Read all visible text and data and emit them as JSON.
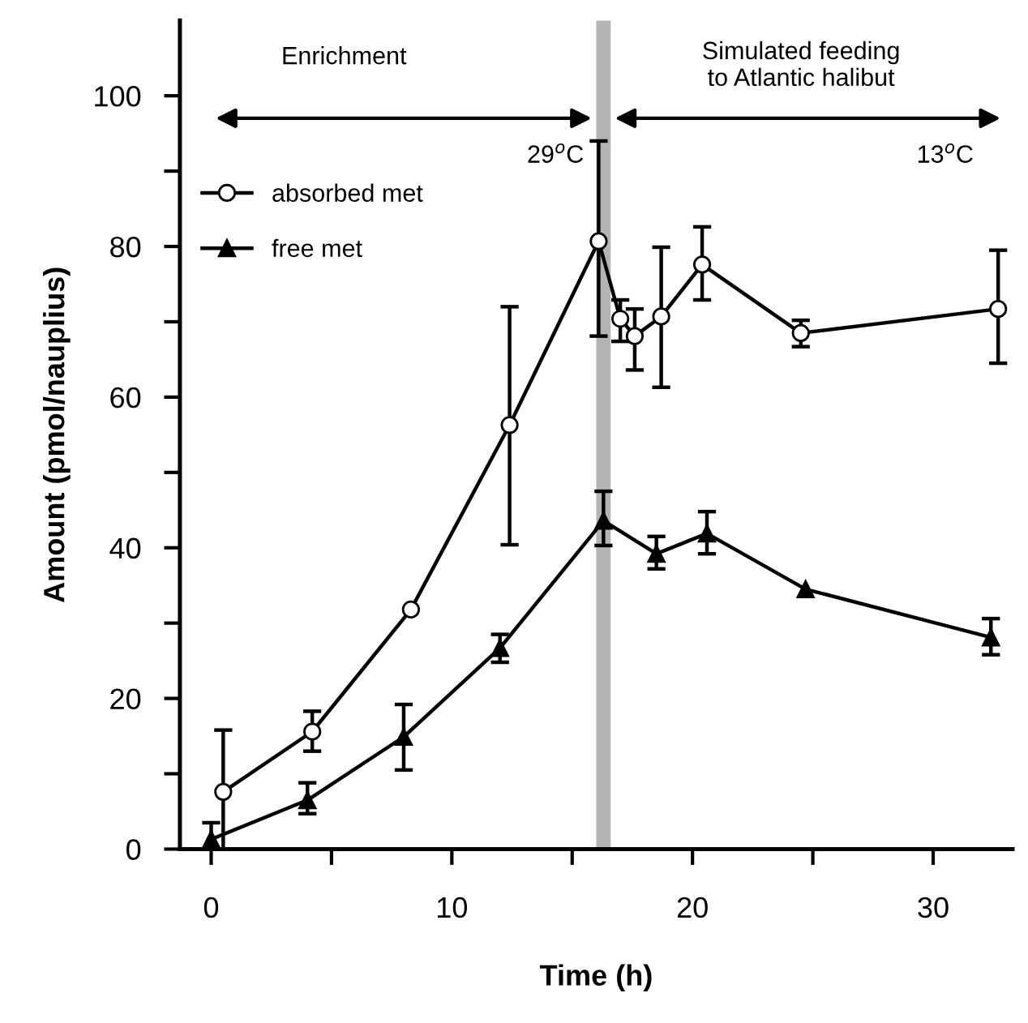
{
  "chart_data": {
    "type": "line",
    "xlabel": "Time (h)",
    "ylabel": "Amount (pmol/nauplius)",
    "series": [
      {
        "name": "absorbed met",
        "color": "#000000",
        "marker": "circle",
        "x": [
          0.5,
          4.2,
          8.3,
          12.4,
          16.1,
          17.0,
          17.6,
          18.7,
          20.4,
          24.5,
          32.7
        ],
        "values": [
          7.6,
          15.6,
          31.8,
          56.3,
          80.7,
          70.4,
          68.1,
          70.7,
          77.6,
          68.5,
          71.7
        ],
        "errors": [
          [
            0,
            15.8
          ],
          [
            13.0,
            18.3
          ],
          null,
          [
            40.4,
            72
          ],
          [
            68.1,
            94
          ],
          [
            67.4,
            72.9
          ],
          [
            63.6,
            71.7
          ],
          [
            61.3,
            79.9
          ],
          [
            72.9,
            82.6
          ],
          [
            66.7,
            70.2
          ],
          [
            64.5,
            79.5
          ]
        ]
      },
      {
        "name": "free met",
        "color": "#000000",
        "marker": "triangle",
        "x": [
          0,
          4.0,
          8.0,
          12.0,
          16.3,
          18.5,
          20.6,
          24.7,
          32.4
        ],
        "values": [
          1.3,
          6.5,
          14.9,
          26.7,
          43.6,
          39.2,
          41.9,
          34.5,
          28.1
        ],
        "errors": [
          [
            0,
            3.5
          ],
          [
            4.7,
            8.8
          ],
          [
            10.5,
            19.2
          ],
          [
            24.8,
            28.5
          ],
          [
            40.3,
            47.5
          ],
          [
            37.2,
            41.5
          ],
          [
            39.2,
            44.8
          ],
          null,
          [
            25.8,
            30.6
          ]
        ]
      }
    ],
    "xlim": [
      -1.3,
      33.3
    ],
    "ylim": [
      0,
      110
    ],
    "xticks": [
      0,
      {
        "value": 5,
        "label": null
      },
      10,
      {
        "value": 15,
        "label": null
      },
      20,
      {
        "value": 25,
        "label": null
      },
      30
    ],
    "yticks": [
      0,
      {
        "value": 10,
        "label": null
      },
      20,
      {
        "value": 30,
        "label": null
      },
      40,
      {
        "value": 50,
        "label": null
      },
      60,
      {
        "value": 70,
        "label": null
      },
      80,
      {
        "value": 90,
        "label": null
      },
      100
    ],
    "bands": [
      {
        "axis": "x",
        "from": 16.0,
        "to": 16.6,
        "color": "#b4b4b4"
      }
    ],
    "annotations": [
      "Enrichment",
      "Simulated feeding\nto Atlantic halibut",
      "29$^{o}$C",
      "13$^{o}$C"
    ],
    "grid": false,
    "legend": "top left",
    "line_style": "solid"
  }
}
